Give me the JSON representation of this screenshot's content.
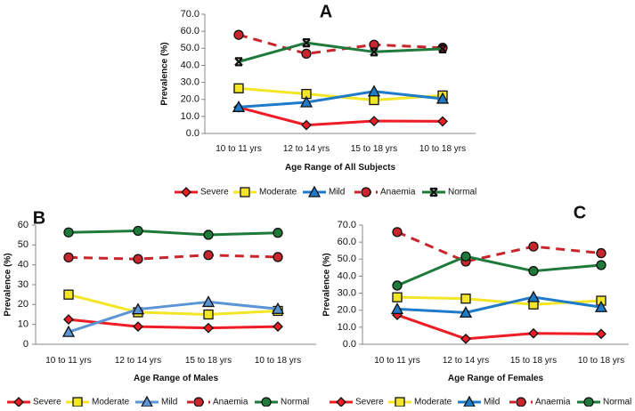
{
  "chart_data": [
    {
      "type": "line",
      "panel_label": "A",
      "categories": [
        "10 to 11 yrs",
        "12 to 14 yrs",
        "15 to 18 yrs",
        "10 to 18 yrs"
      ],
      "xlabel": "Age Range of All Subjects",
      "ylabel": "Prevalence (%)",
      "ylim": [
        0,
        70
      ],
      "yticks": [
        "0.0",
        "10.0",
        "20.0",
        "30.0",
        "40.0",
        "50.0",
        "60.0",
        "70.0"
      ],
      "legend": "bottom",
      "series": [
        {
          "name": "Severe",
          "color": "#ee1c25",
          "marker": "diamond",
          "dashed": false,
          "values": [
            15.3,
            4.9,
            7.3,
            7.1
          ]
        },
        {
          "name": "Moderate",
          "color": "#f2e627",
          "marker": "square",
          "dashed": false,
          "values": [
            26.5,
            23.2,
            19.6,
            22.3
          ]
        },
        {
          "name": "Mild",
          "color": "#1f7ac8",
          "marker": "triangle",
          "dashed": false,
          "values": [
            15.5,
            18.3,
            24.7,
            20.4
          ]
        },
        {
          "name": "Anaemia",
          "color": "#c8262c",
          "marker": "circle",
          "dashed": true,
          "values": [
            57.9,
            46.8,
            52.1,
            50.3
          ]
        },
        {
          "name": "Normal",
          "color": "#1e7a3a",
          "marker": "x",
          "dashed": false,
          "values": [
            42.1,
            53.2,
            47.9,
            49.7
          ]
        }
      ]
    },
    {
      "type": "line",
      "panel_label": "B",
      "categories": [
        "10 to 11 yrs",
        "12 to 14 yrs",
        "15 to 18 yrs",
        "10 to 18 yrs"
      ],
      "xlabel": "Age Range of Males",
      "ylabel": "Prevalence (%)",
      "ylim": [
        0,
        60
      ],
      "yticks": [
        "0",
        "10",
        "20",
        "30",
        "40",
        "50",
        "60"
      ],
      "legend": "bottom",
      "series": [
        {
          "name": "Severe",
          "color": "#ee1c25",
          "marker": "diamond",
          "dashed": false,
          "values": [
            12.5,
            8.9,
            8.2,
            8.9
          ]
        },
        {
          "name": "Moderate",
          "color": "#f2e627",
          "marker": "square",
          "dashed": false,
          "values": [
            25.0,
            16.1,
            15.0,
            16.8
          ]
        },
        {
          "name": "Mild",
          "color": "#5b95d6",
          "marker": "triangle",
          "dashed": false,
          "values": [
            6.2,
            17.6,
            21.3,
            17.8
          ]
        },
        {
          "name": "Anaemia",
          "color": "#c8262c",
          "marker": "circle",
          "dashed": true,
          "values": [
            43.7,
            42.9,
            44.9,
            43.9
          ]
        },
        {
          "name": "Normal",
          "color": "#1e7a3a",
          "marker": "circle",
          "dashed": false,
          "values": [
            56.3,
            57.1,
            55.1,
            56.1
          ]
        }
      ]
    },
    {
      "type": "line",
      "panel_label": "C",
      "categories": [
        "10 to 11 yrs",
        "12 to 14 yrs",
        "15 to 18 yrs",
        "10 to 18 yrs"
      ],
      "xlabel": "Age Range of Females",
      "ylabel": "Prevalence (%)",
      "ylim": [
        0,
        70
      ],
      "yticks": [
        "0.0",
        "10.0",
        "20.0",
        "30.0",
        "40.0",
        "50.0",
        "60.0",
        "70.0"
      ],
      "legend": "bottom",
      "series": [
        {
          "name": "Severe",
          "color": "#ee1c25",
          "marker": "diamond",
          "dashed": false,
          "values": [
            17.2,
            3.2,
            6.4,
            6.1
          ]
        },
        {
          "name": "Moderate",
          "color": "#f2e627",
          "marker": "square",
          "dashed": false,
          "values": [
            27.6,
            26.8,
            23.4,
            25.6
          ]
        },
        {
          "name": "Mild",
          "color": "#1f7ac8",
          "marker": "triangle",
          "dashed": false,
          "values": [
            20.7,
            18.6,
            27.7,
            21.8
          ]
        },
        {
          "name": "Anaemia",
          "color": "#c8262c",
          "marker": "circle",
          "dashed": true,
          "values": [
            65.9,
            48.6,
            57.4,
            53.5
          ]
        },
        {
          "name": "Normal",
          "color": "#1e7a3a",
          "marker": "circle",
          "dashed": false,
          "values": [
            34.5,
            51.6,
            43.0,
            46.5
          ]
        }
      ]
    }
  ]
}
